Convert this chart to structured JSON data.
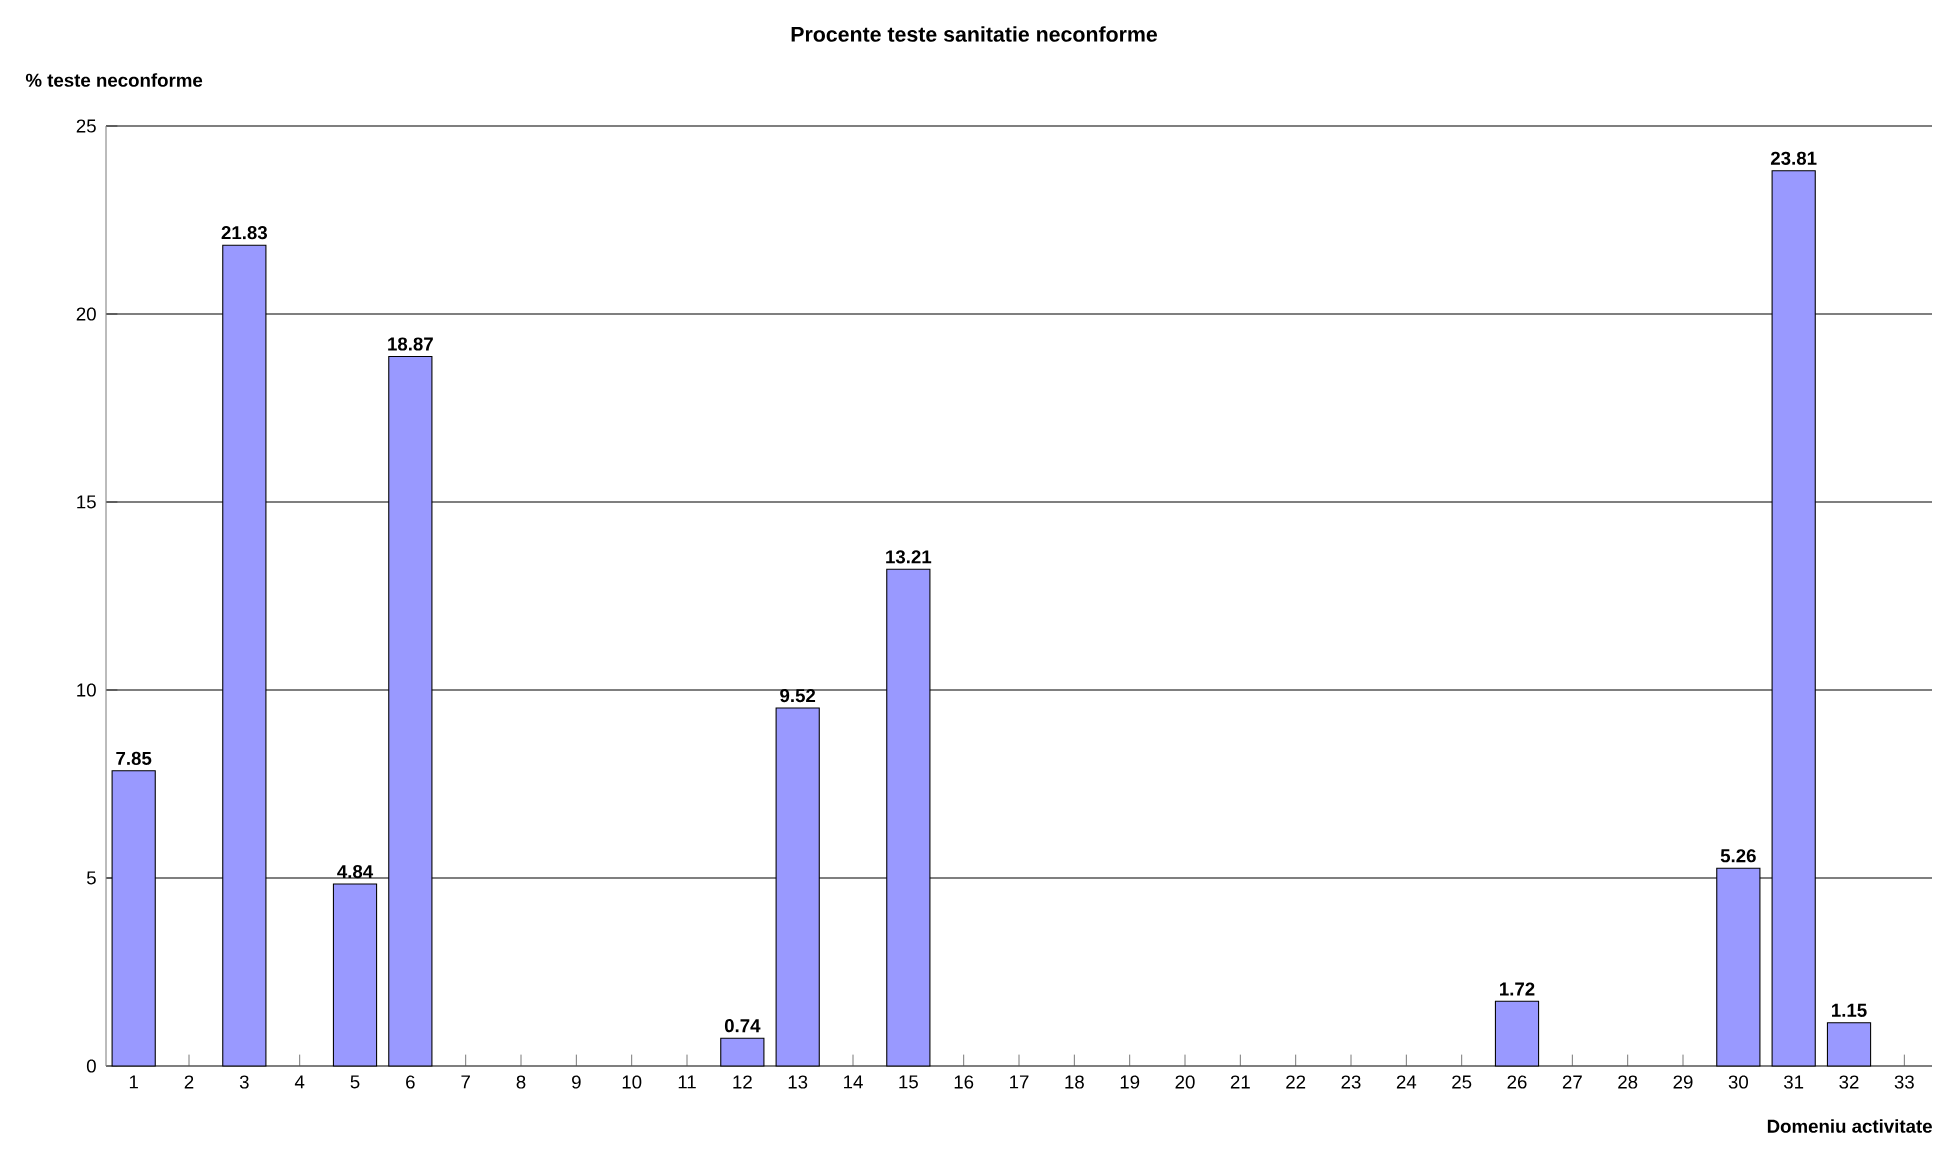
{
  "chart_data": {
    "type": "bar",
    "title": "Procente teste sanitatie neconforme",
    "ylabel": "% teste neconforme",
    "xlabel": "Domeniu activitate",
    "categories": [
      "1",
      "2",
      "3",
      "4",
      "5",
      "6",
      "7",
      "8",
      "9",
      "10",
      "11",
      "12",
      "13",
      "14",
      "15",
      "16",
      "17",
      "18",
      "19",
      "20",
      "21",
      "22",
      "23",
      "24",
      "25",
      "26",
      "27",
      "28",
      "29",
      "30",
      "31",
      "32",
      "33"
    ],
    "values": [
      7.85,
      null,
      21.83,
      null,
      4.84,
      18.87,
      null,
      null,
      null,
      null,
      null,
      0.74,
      9.52,
      null,
      13.21,
      null,
      null,
      null,
      null,
      null,
      null,
      null,
      null,
      null,
      null,
      1.72,
      null,
      null,
      null,
      5.26,
      23.81,
      1.15,
      null
    ],
    "value_labels": [
      "7.85",
      null,
      "21.83",
      null,
      "4.84",
      "18.87",
      null,
      null,
      null,
      null,
      null,
      "0.74",
      "9.52",
      null,
      "13.21",
      null,
      null,
      null,
      null,
      null,
      null,
      null,
      null,
      null,
      null,
      "1.72",
      null,
      null,
      null,
      "5.26",
      "23.81",
      "1.15",
      null
    ],
    "color": "#9999ff",
    "ylim": [
      0,
      25
    ],
    "yticks": [
      0,
      5,
      10,
      15,
      20,
      25
    ],
    "grid": "y"
  }
}
